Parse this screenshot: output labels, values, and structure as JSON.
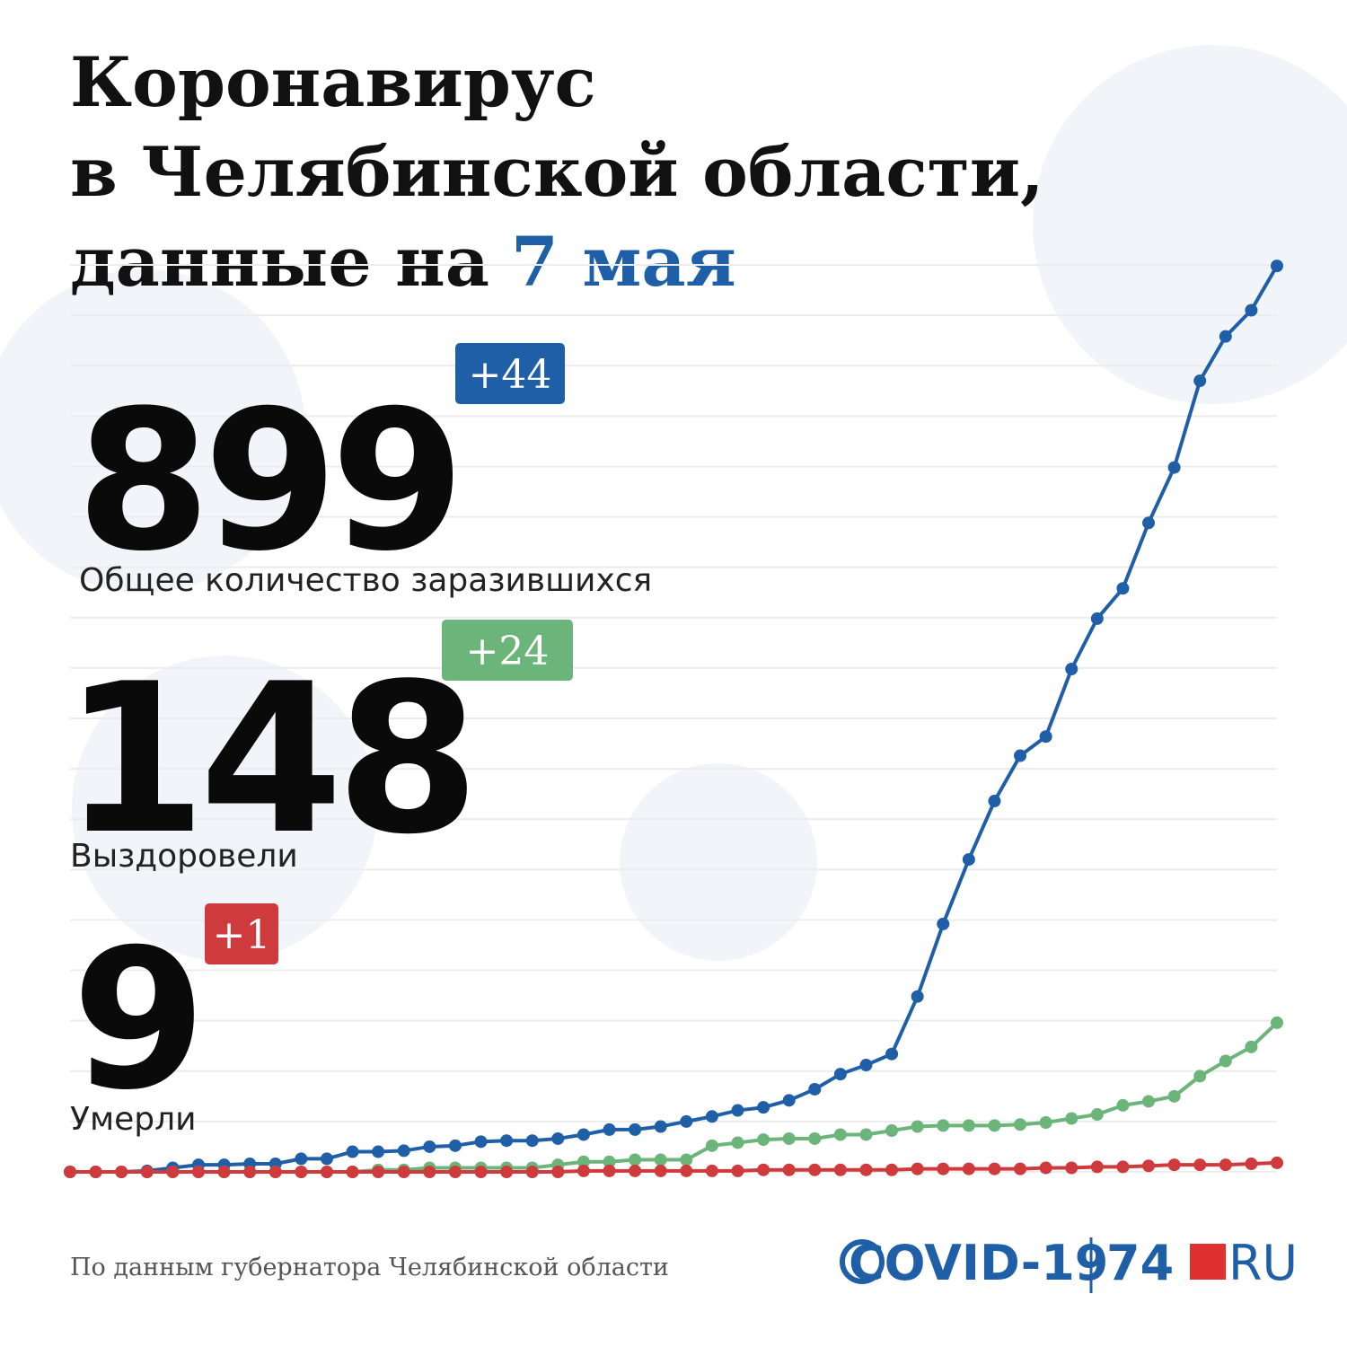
{
  "header": {
    "title_lines": [
      "Коронавирус",
      "в Челябинской области,",
      "данные на"
    ],
    "date": "7 мая"
  },
  "stats": [
    {
      "value": 899,
      "delta": "+44",
      "label": "Общее количество заразившихся",
      "color": "#1f5fa8"
    },
    {
      "value": 148,
      "delta": "+24",
      "label": "Выздоровели",
      "color": "#6cb57a"
    },
    {
      "value": 9,
      "delta": "+1",
      "label": "Умерли",
      "color": "#cf3a3c"
    }
  ],
  "footer": {
    "source": "По данным губернатора Челябинской области",
    "logo": "COVID-19",
    "brand_num": "74",
    "brand_ru": "RU"
  },
  "chart_data": {
    "type": "line",
    "categories": [
      null,
      null,
      null,
      null,
      null,
      null,
      null,
      null,
      null,
      null,
      null,
      null,
      null,
      null,
      null,
      null,
      null,
      null,
      null,
      null,
      null,
      null,
      null,
      null,
      null,
      null,
      null,
      null,
      null,
      null,
      null,
      null,
      null,
      null,
      null,
      null,
      null,
      null,
      null,
      null,
      null,
      null,
      null,
      null,
      null,
      null,
      null,
      null
    ],
    "series": [
      {
        "name": null,
        "color": "#1f5fa8",
        "values": [
          0,
          0,
          0,
          1,
          4,
          7,
          7,
          8,
          8,
          13,
          13,
          20,
          20,
          21,
          25,
          26,
          30,
          31,
          31,
          33,
          37,
          42,
          42,
          45,
          50,
          55,
          61,
          64,
          71,
          82,
          97,
          106,
          117,
          174,
          246,
          310,
          368,
          413,
          432,
          499,
          549,
          579,
          644,
          699,
          785,
          829,
          855,
          899
        ]
      },
      {
        "name": null,
        "color": "#6cb57a",
        "values": [
          0,
          0,
          0,
          0,
          0,
          0,
          0,
          0,
          0,
          0,
          0,
          0,
          2,
          2,
          4,
          4,
          4,
          4,
          4,
          7,
          10,
          10,
          12,
          12,
          12,
          26,
          29,
          32,
          33,
          33,
          37,
          37,
          41,
          45,
          46,
          46,
          46,
          47,
          49,
          53,
          57,
          66,
          70,
          75,
          95,
          110,
          124,
          148
        ]
      },
      {
        "name": null,
        "color": "#cf3a3c",
        "values": [
          0,
          0,
          0,
          0,
          0,
          0,
          0,
          0,
          0,
          0,
          0,
          0,
          0,
          0,
          0,
          0,
          0,
          0,
          0,
          0,
          1,
          1,
          1,
          1,
          1,
          1,
          1,
          2,
          2,
          2,
          2,
          2,
          2,
          3,
          3,
          3,
          3,
          3,
          4,
          4,
          5,
          5,
          6,
          7,
          7,
          7,
          8,
          9
        ]
      }
    ],
    "ylim": [
      0,
      900
    ],
    "yticks": [
      0,
      50,
      100,
      150,
      200,
      250,
      300,
      350,
      400,
      450,
      500,
      550,
      600,
      650,
      700,
      750,
      800,
      850,
      900
    ],
    "grid": true
  }
}
